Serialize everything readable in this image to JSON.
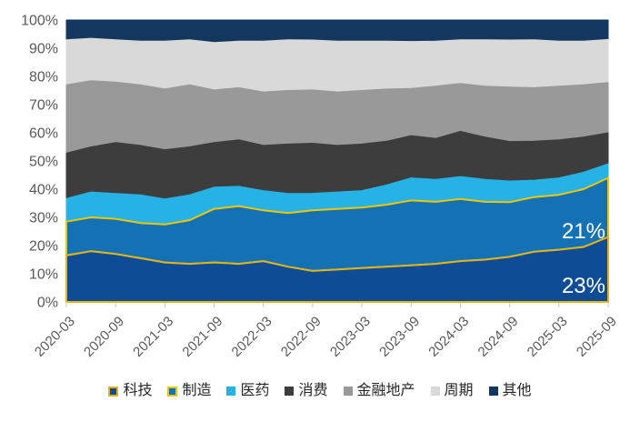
{
  "chart_data": {
    "type": "area",
    "stacked_percent": true,
    "title": "",
    "xlabel": "",
    "ylabel": "",
    "ylim": [
      0,
      100
    ],
    "grid": false,
    "legend_position": "bottom",
    "axis_color": "#595959",
    "tick_color": "#c9c9c9",
    "x_quarters": [
      "2020-03",
      "2020-06",
      "2020-09",
      "2020-12",
      "2021-03",
      "2021-06",
      "2021-09",
      "2021-12",
      "2022-03",
      "2022-06",
      "2022-09",
      "2022-12",
      "2023-03",
      "2023-06",
      "2023-09",
      "2023-12",
      "2024-03",
      "2024-06",
      "2024-09",
      "2024-12",
      "2025-03",
      "2025-06",
      "2025-09"
    ],
    "x_tick_labels": [
      "2020-03",
      "2020-09",
      "2021-03",
      "2021-09",
      "2022-03",
      "2022-09",
      "2023-03",
      "2023-09",
      "2024-03",
      "2024-09",
      "2025-03",
      "2025-09"
    ],
    "y_tick_labels": [
      "0%",
      "10%",
      "20%",
      "30%",
      "40%",
      "50%",
      "60%",
      "70%",
      "80%",
      "90%",
      "100%"
    ],
    "series": [
      {
        "name": "科技",
        "key": "tech",
        "color": "#0E4D96",
        "stroke": "#E2B419",
        "values": [
          16.5,
          18,
          17,
          15.5,
          14,
          13.5,
          14,
          13.5,
          14.5,
          12.5,
          11,
          11.5,
          12,
          12.5,
          13,
          13.5,
          14.5,
          15,
          16,
          17.8,
          18.5,
          19.5,
          23
        ]
      },
      {
        "name": "制造",
        "key": "manufacturing",
        "color": "#1371B4",
        "stroke": "#F2C500",
        "values": [
          12,
          12,
          12.5,
          12.5,
          13.5,
          15.5,
          19,
          20.5,
          18,
          19,
          21.5,
          21.5,
          21.5,
          22,
          23,
          22,
          22,
          20.5,
          19.4,
          19.4,
          19.5,
          20.5,
          21
        ]
      },
      {
        "name": "医药",
        "key": "pharma",
        "color": "#27B2E5",
        "values": [
          8.2,
          9,
          9,
          10,
          9,
          9,
          7.7,
          7,
          7,
          7,
          6,
          6,
          6,
          7,
          8,
          8,
          8,
          8,
          7.5,
          6,
          6,
          6,
          5
        ]
      },
      {
        "name": "消费",
        "key": "consumer",
        "color": "#3D3D3D",
        "values": [
          16.1,
          16,
          18,
          17.5,
          17.5,
          17,
          15.8,
          16.5,
          16,
          17.5,
          17.8,
          16.5,
          16.5,
          15.5,
          15,
          14.5,
          16,
          15,
          14,
          13.8,
          13.5,
          12.5,
          11
        ]
      },
      {
        "name": "金融地产",
        "key": "finance-realestate",
        "color": "#999999",
        "values": [
          24.2,
          23.5,
          21.5,
          21.5,
          21.5,
          22,
          18.7,
          18.5,
          19,
          19,
          18.9,
          19,
          19,
          18.5,
          16.7,
          18.5,
          17,
          18,
          19.3,
          19,
          19,
          18.5,
          17.8
        ]
      },
      {
        "name": "周期",
        "key": "cyclical",
        "color": "#D9D9D9",
        "values": [
          16,
          15,
          15,
          15.5,
          17,
          16,
          16.8,
          16.5,
          18,
          18,
          17.7,
          18,
          17.5,
          17,
          16.7,
          16,
          15.5,
          16.5,
          16.7,
          17,
          16,
          15.5,
          15.3
        ]
      },
      {
        "name": "其他",
        "key": "other",
        "color": "#14375F",
        "values": [
          7,
          6.5,
          7,
          7.5,
          7.5,
          7,
          8,
          7.5,
          7.5,
          7,
          7.1,
          7.5,
          7.5,
          7.5,
          7.6,
          7.5,
          7,
          7,
          7.1,
          7,
          7.5,
          7.5,
          6.9
        ]
      }
    ],
    "annotations": [
      {
        "text": "21%",
        "series": "制造",
        "color": "#ffffff"
      },
      {
        "text": "23%",
        "series": "科技",
        "color": "#ffffff"
      }
    ]
  }
}
